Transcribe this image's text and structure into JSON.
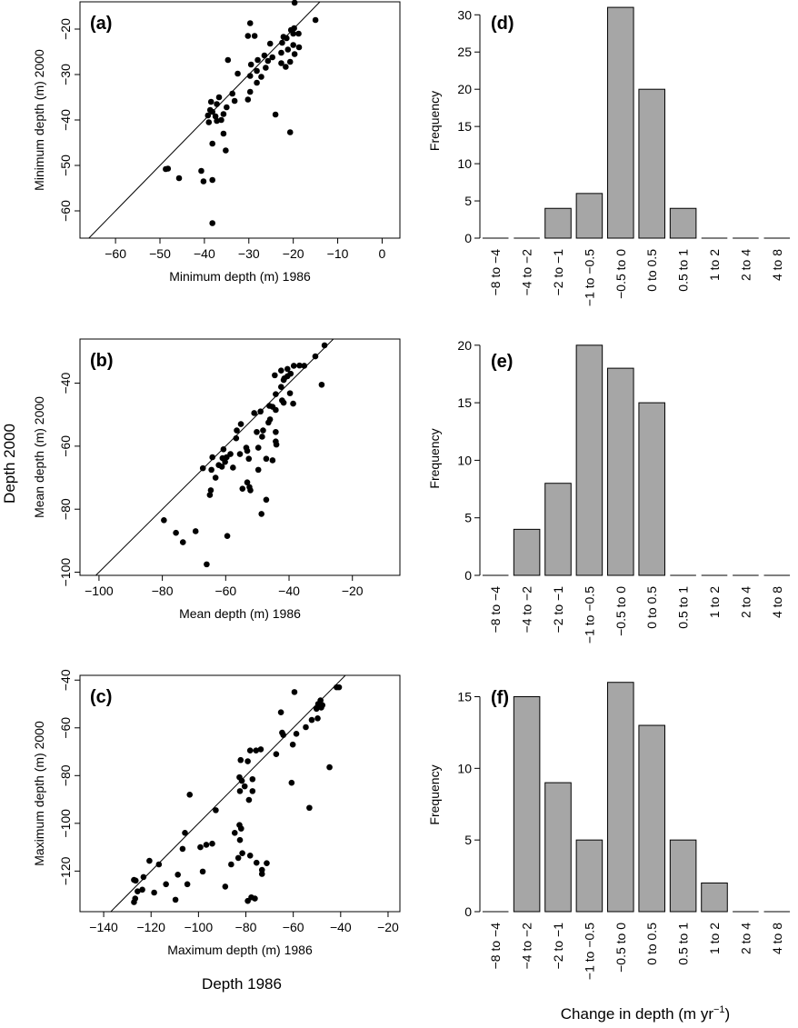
{
  "figure": {
    "left_common_ylabel": "Depth 2000",
    "left_common_xlabel": "Depth 1986",
    "right_common_xlabel": "Change in depth  (m yr",
    "right_common_xlabel_sup": "−1",
    "right_common_xlabel_close": ")"
  },
  "chart_data": [
    {
      "id": "a",
      "panel_label": "(a)",
      "type": "scatter",
      "xlabel": "Minimum depth (m) 1986",
      "ylabel": "Minimum depth (m) 2000",
      "xlim": [
        -68,
        4
      ],
      "ylim": [
        -66,
        -14
      ],
      "xticks": [
        -60,
        -50,
        -40,
        -30,
        -20,
        -10,
        0
      ],
      "yticks": [
        -60,
        -50,
        -40,
        -30,
        -20
      ],
      "reference_line": "1:1",
      "points": [
        [
          -19.7,
          -14.2
        ],
        [
          -15,
          -18
        ],
        [
          -29.7,
          -18.7
        ],
        [
          -28.7,
          -21.5
        ],
        [
          -30.2,
          -21.5
        ],
        [
          -22.2,
          -21.7
        ],
        [
          -21.5,
          -22
        ],
        [
          -22.5,
          -23
        ],
        [
          -20,
          -23.5
        ],
        [
          -18.7,
          -24
        ],
        [
          -21.2,
          -24.5
        ],
        [
          -22.7,
          -25.2
        ],
        [
          -19.7,
          -25.5
        ],
        [
          -20,
          -21
        ],
        [
          -19.8,
          -19.8
        ],
        [
          -18.8,
          -21
        ],
        [
          -20.5,
          -20.2
        ],
        [
          -25.2,
          -23.2
        ],
        [
          -26.5,
          -25.8
        ],
        [
          -24.7,
          -26.2
        ],
        [
          -28,
          -26.8
        ],
        [
          -25.7,
          -27
        ],
        [
          -20.7,
          -27.2
        ],
        [
          -22.7,
          -27.5
        ],
        [
          -29.5,
          -27.8
        ],
        [
          -21.7,
          -28.3
        ],
        [
          -26.2,
          -28.5
        ],
        [
          -28.2,
          -29.2
        ],
        [
          -32.5,
          -29.8
        ],
        [
          -29.7,
          -30.3
        ],
        [
          -27.2,
          -30.5
        ],
        [
          -28.2,
          -31.8
        ],
        [
          -34.7,
          -26.8
        ],
        [
          -29.7,
          -33.8
        ],
        [
          -33.7,
          -34.2
        ],
        [
          -30.2,
          -35.5
        ],
        [
          -36.7,
          -35
        ],
        [
          -33.2,
          -35.8
        ],
        [
          -38.5,
          -36
        ],
        [
          -37.2,
          -36.5
        ],
        [
          -35,
          -37.2
        ],
        [
          -38.7,
          -37.8
        ],
        [
          -38.2,
          -38.2
        ],
        [
          -35.7,
          -38.7
        ],
        [
          -39.2,
          -39
        ],
        [
          -37.5,
          -39.2
        ],
        [
          -36.2,
          -40
        ],
        [
          -24,
          -38.8
        ],
        [
          -39,
          -40.5
        ],
        [
          -37.2,
          -40.2
        ],
        [
          -35.7,
          -43
        ],
        [
          -20.7,
          -42.7
        ],
        [
          -38.2,
          -45.2
        ],
        [
          -35.2,
          -46.7
        ],
        [
          -48.7,
          -50.8
        ],
        [
          -48.2,
          -50.7
        ],
        [
          -40.7,
          -51.2
        ],
        [
          -40.2,
          -53.5
        ],
        [
          -45.7,
          -52.8
        ],
        [
          -38.2,
          -53.2
        ],
        [
          -38.2,
          -62.7
        ]
      ]
    },
    {
      "id": "b",
      "panel_label": "(b)",
      "type": "scatter",
      "xlabel": "Mean depth (m) 1986",
      "ylabel": "Mean depth (m) 2000",
      "xlim": [
        -106,
        -5
      ],
      "ylim": [
        -101,
        -26
      ],
      "xticks": [
        -100,
        -80,
        -60,
        -40,
        -20
      ],
      "yticks": [
        -100,
        -80,
        -60,
        -40
      ],
      "reference_line": "1:1",
      "points": [
        [
          -28.8,
          -28
        ],
        [
          -31.7,
          -31.5
        ],
        [
          -35.2,
          -34.5
        ],
        [
          -36.7,
          -34.4
        ],
        [
          -38.5,
          -34.5
        ],
        [
          -40.5,
          -35.5
        ],
        [
          -42.5,
          -36
        ],
        [
          -44.5,
          -37.5
        ],
        [
          -40.5,
          -37.8
        ],
        [
          -41.5,
          -38.5
        ],
        [
          -39.5,
          -37
        ],
        [
          -41.7,
          -39
        ],
        [
          -29.7,
          -40.5
        ],
        [
          -42.5,
          -41.2
        ],
        [
          -44.2,
          -43.5
        ],
        [
          -39.7,
          -43.2
        ],
        [
          -42.2,
          -45.5
        ],
        [
          -38.7,
          -46.5
        ],
        [
          -46.2,
          -47.2
        ],
        [
          -45.2,
          -47.5
        ],
        [
          -41.7,
          -46.2
        ],
        [
          -44.2,
          -48.5
        ],
        [
          -49,
          -49
        ],
        [
          -51,
          -49.5
        ],
        [
          -46,
          -51.5
        ],
        [
          -55.2,
          -53
        ],
        [
          -46.5,
          -52.5
        ],
        [
          -56.5,
          -55
        ],
        [
          -50.2,
          -55.5
        ],
        [
          -48.2,
          -55
        ],
        [
          -44.2,
          -55.5
        ],
        [
          -48.5,
          -57
        ],
        [
          -56.7,
          -57.5
        ],
        [
          -44.2,
          -58.5
        ],
        [
          -44,
          -59.5
        ],
        [
          -53.5,
          -60.5
        ],
        [
          -49.7,
          -60.5
        ],
        [
          -53.2,
          -61.5
        ],
        [
          -60.7,
          -61
        ],
        [
          -55.5,
          -62.5
        ],
        [
          -58.5,
          -62.5
        ],
        [
          -59.7,
          -63.5
        ],
        [
          -64.2,
          -63.5
        ],
        [
          -61,
          -63.8
        ],
        [
          -52.7,
          -64
        ],
        [
          -47.2,
          -64
        ],
        [
          -45.2,
          -64.5
        ],
        [
          -61.2,
          -66.5
        ],
        [
          -60.2,
          -65
        ],
        [
          -62.2,
          -66
        ],
        [
          -57.7,
          -66.8
        ],
        [
          -67.2,
          -67
        ],
        [
          -64.5,
          -67.5
        ],
        [
          -49.7,
          -67.5
        ],
        [
          -63.2,
          -70
        ],
        [
          -53.2,
          -71.5
        ],
        [
          -52.5,
          -73
        ],
        [
          -54.7,
          -73.5
        ],
        [
          -52.2,
          -74
        ],
        [
          -64.7,
          -74
        ],
        [
          -65,
          -75.5
        ],
        [
          -47.2,
          -77
        ],
        [
          -48.7,
          -81.5
        ],
        [
          -79.5,
          -83.5
        ],
        [
          -75.7,
          -87.5
        ],
        [
          -69.5,
          -87
        ],
        [
          -59.5,
          -88.5
        ],
        [
          -73.5,
          -90.5
        ],
        [
          -66,
          -97.5
        ]
      ]
    },
    {
      "id": "c",
      "panel_label": "(c)",
      "type": "scatter",
      "xlabel": "Maximum depth (m) 1986",
      "ylabel": "Maximum depth (m) 2000",
      "xlim": [
        -150,
        -15
      ],
      "ylim": [
        -137,
        -38
      ],
      "xticks": [
        -140,
        -120,
        -100,
        -80,
        -60,
        -40,
        -20
      ],
      "yticks": [
        -120,
        -100,
        -80,
        -60,
        -40
      ],
      "reference_line": "1:1",
      "points": [
        [
          -40.7,
          -43
        ],
        [
          -41.7,
          -43
        ],
        [
          -59.5,
          -45
        ],
        [
          -48.5,
          -48.5
        ],
        [
          -49.5,
          -50
        ],
        [
          -48.2,
          -51.5
        ],
        [
          -47.7,
          -50.5
        ],
        [
          -50.2,
          -52
        ],
        [
          -65.2,
          -53.5
        ],
        [
          -49.7,
          -56
        ],
        [
          -52.2,
          -56.7
        ],
        [
          -54.7,
          -59.7
        ],
        [
          -58.7,
          -62.5
        ],
        [
          -64.2,
          -63
        ],
        [
          -64.7,
          -62
        ],
        [
          -60.2,
          -67
        ],
        [
          -73.7,
          -69
        ],
        [
          -75.7,
          -69.5
        ],
        [
          -78.2,
          -69.5
        ],
        [
          -82.2,
          -73.5
        ],
        [
          -67.2,
          -71
        ],
        [
          -79.2,
          -74
        ],
        [
          -77.2,
          -81.5
        ],
        [
          -82.7,
          -80.7
        ],
        [
          -81.7,
          -82.2
        ],
        [
          -60.7,
          -83
        ],
        [
          -80.5,
          -84.5
        ],
        [
          -82.5,
          -86.5
        ],
        [
          -44.7,
          -76.5
        ],
        [
          -77.2,
          -86.5
        ],
        [
          -103.7,
          -88
        ],
        [
          -78.7,
          -90.2
        ],
        [
          -92.7,
          -94.5
        ],
        [
          -53.2,
          -93.5
        ],
        [
          -82.7,
          -100.7
        ],
        [
          -82,
          -102.2
        ],
        [
          -105.7,
          -104
        ],
        [
          -84.7,
          -104
        ],
        [
          -82.5,
          -107
        ],
        [
          -94.2,
          -108.5
        ],
        [
          -96.7,
          -109
        ],
        [
          -99.2,
          -110
        ],
        [
          -81.5,
          -112.5
        ],
        [
          -83.2,
          -114.5
        ],
        [
          -106.7,
          -110.7
        ],
        [
          -78.2,
          -113.5
        ],
        [
          -120.7,
          -115.7
        ],
        [
          -75.5,
          -116.5
        ],
        [
          -116.7,
          -117.2
        ],
        [
          -71.2,
          -116.7
        ],
        [
          -86.2,
          -117.2
        ],
        [
          -73.2,
          -119.5
        ],
        [
          -98.2,
          -120.2
        ],
        [
          -73.2,
          -121.2
        ],
        [
          -108.7,
          -121.5
        ],
        [
          -127.2,
          -123.7
        ],
        [
          -113.7,
          -125.5
        ],
        [
          -126.5,
          -124
        ],
        [
          -123.2,
          -122.5
        ],
        [
          -104.7,
          -125.5
        ],
        [
          -123.7,
          -127.8
        ],
        [
          -88.7,
          -126.5
        ],
        [
          -125.7,
          -128.5
        ],
        [
          -118.7,
          -129
        ],
        [
          -126.7,
          -131.5
        ],
        [
          -109.7,
          -132
        ],
        [
          -127.2,
          -133
        ],
        [
          -77.7,
          -131
        ],
        [
          -76.2,
          -131.5
        ],
        [
          -79.2,
          -132.5
        ]
      ]
    },
    {
      "id": "d",
      "panel_label": "(d)",
      "type": "bar",
      "ylabel": "Frequency",
      "categories": [
        "−8  to −4",
        "−4  to −2",
        "−2  to −1",
        "−1  to −0.5",
        "−0.5  to  0",
        "0  to  0.5",
        "0.5  to  1",
        "1  to  2",
        "2  to  4",
        "4  to  8"
      ],
      "values": [
        0,
        0,
        4,
        6,
        31,
        20,
        4,
        0,
        0,
        0
      ],
      "ylim": [
        0,
        31.5
      ],
      "yticks": [
        0,
        5,
        10,
        15,
        20,
        25,
        30
      ]
    },
    {
      "id": "e",
      "panel_label": "(e)",
      "type": "bar",
      "ylabel": "Frequency",
      "categories": [
        "−8  to −4",
        "−4  to −2",
        "−2  to −1",
        "−1  to −0.5",
        "−0.5  to  0",
        "0  to  0.5",
        "0.5  to  1",
        "1  to  2",
        "2  to  4",
        "4  to  8"
      ],
      "values": [
        0,
        4,
        8,
        20,
        18,
        15,
        0,
        0,
        0,
        0
      ],
      "ylim": [
        0,
        20.3
      ],
      "yticks": [
        0,
        5,
        10,
        15,
        20
      ]
    },
    {
      "id": "f",
      "panel_label": "(f)",
      "type": "bar",
      "ylabel": "Frequency",
      "categories": [
        "−8  to −4",
        "−4  to −2",
        "−2  to −1",
        "−1  to −0.5",
        "−0.5  to  0",
        "0  to  0.5",
        "0.5  to  1",
        "1  to  2",
        "2  to  4",
        "4  to  8"
      ],
      "values": [
        0,
        15,
        9,
        5,
        16,
        13,
        5,
        2,
        0,
        0
      ],
      "ylim": [
        0,
        16.3
      ],
      "yticks": [
        0,
        5,
        10,
        15
      ]
    }
  ]
}
